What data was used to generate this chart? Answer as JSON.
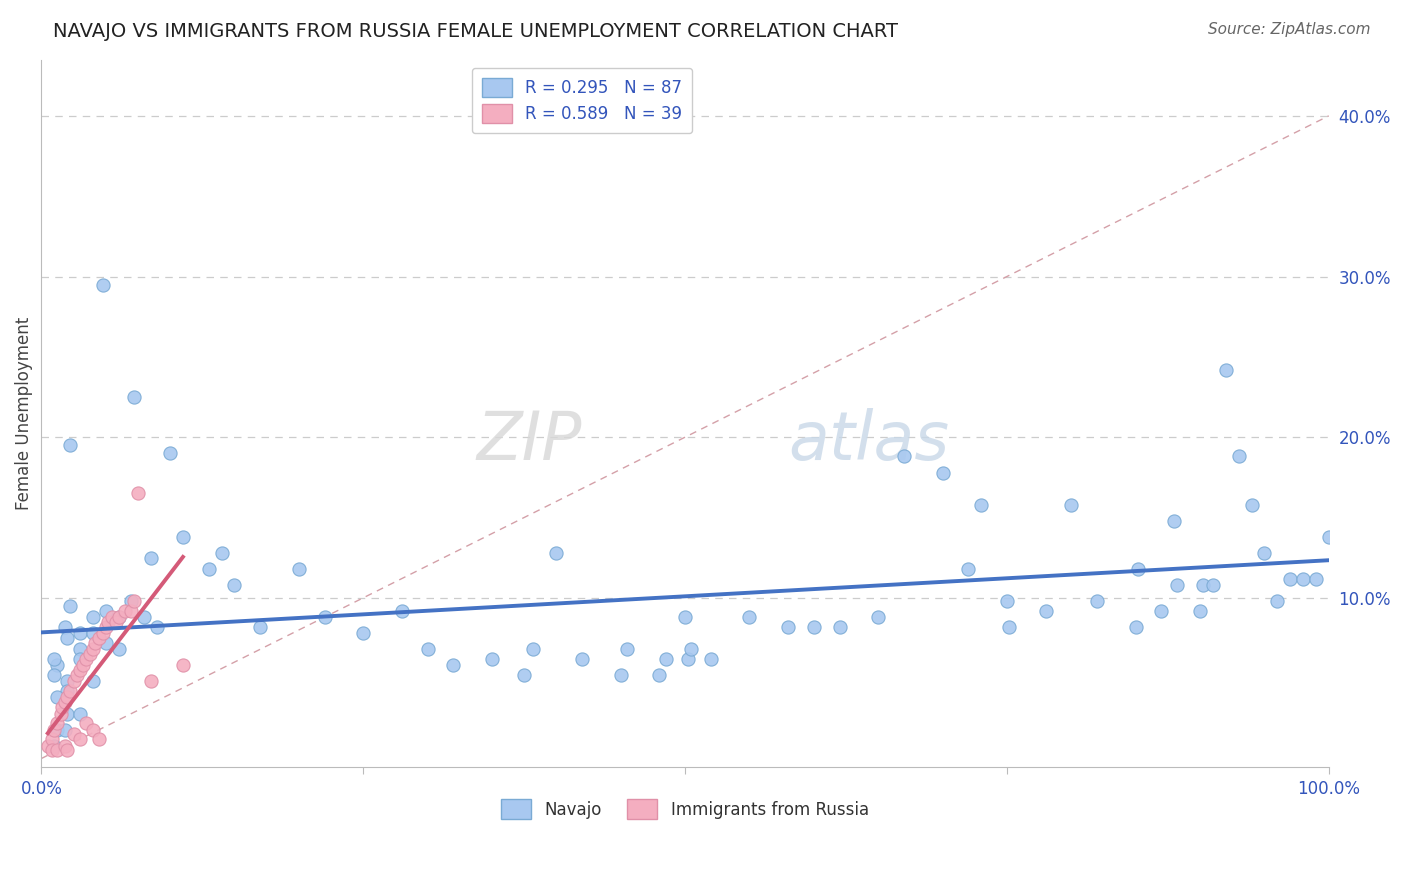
{
  "title": "NAVAJO VS IMMIGRANTS FROM RUSSIA FEMALE UNEMPLOYMENT CORRELATION CHART",
  "source": "Source: ZipAtlas.com",
  "ylabel": "Female Unemployment",
  "xlim": [
    0.0,
    1.0
  ],
  "ylim": [
    -0.005,
    0.435
  ],
  "navajo_R": 0.295,
  "navajo_N": 87,
  "russia_R": 0.589,
  "russia_N": 39,
  "navajo_color": "#a8c8f0",
  "russia_color": "#f4aec0",
  "navajo_edge_color": "#7aaad4",
  "russia_edge_color": "#e090a8",
  "navajo_line_color": "#4472c4",
  "russia_line_color": "#d45a78",
  "diagonal_color": "#d4a0a8",
  "text_color": "#3355bb",
  "N_color": "#cc2244",
  "navajo_points": [
    [
      0.022,
      0.195
    ],
    [
      0.048,
      0.295
    ],
    [
      0.072,
      0.225
    ],
    [
      0.1,
      0.19
    ],
    [
      0.085,
      0.125
    ],
    [
      0.022,
      0.095
    ],
    [
      0.018,
      0.082
    ],
    [
      0.02,
      0.075
    ],
    [
      0.03,
      0.078
    ],
    [
      0.04,
      0.088
    ],
    [
      0.012,
      0.058
    ],
    [
      0.01,
      0.062
    ],
    [
      0.01,
      0.052
    ],
    [
      0.02,
      0.048
    ],
    [
      0.03,
      0.068
    ],
    [
      0.04,
      0.078
    ],
    [
      0.05,
      0.092
    ],
    [
      0.06,
      0.088
    ],
    [
      0.07,
      0.098
    ],
    [
      0.08,
      0.088
    ],
    [
      0.09,
      0.082
    ],
    [
      0.05,
      0.072
    ],
    [
      0.03,
      0.062
    ],
    [
      0.02,
      0.042
    ],
    [
      0.012,
      0.038
    ],
    [
      0.02,
      0.028
    ],
    [
      0.012,
      0.018
    ],
    [
      0.018,
      0.018
    ],
    [
      0.03,
      0.028
    ],
    [
      0.01,
      0.008
    ],
    [
      0.04,
      0.048
    ],
    [
      0.06,
      0.068
    ],
    [
      0.11,
      0.138
    ],
    [
      0.13,
      0.118
    ],
    [
      0.14,
      0.128
    ],
    [
      0.15,
      0.108
    ],
    [
      0.17,
      0.082
    ],
    [
      0.2,
      0.118
    ],
    [
      0.22,
      0.088
    ],
    [
      0.25,
      0.078
    ],
    [
      0.28,
      0.092
    ],
    [
      0.3,
      0.068
    ],
    [
      0.32,
      0.058
    ],
    [
      0.35,
      0.062
    ],
    [
      0.375,
      0.052
    ],
    [
      0.382,
      0.068
    ],
    [
      0.4,
      0.128
    ],
    [
      0.42,
      0.062
    ],
    [
      0.45,
      0.052
    ],
    [
      0.455,
      0.068
    ],
    [
      0.48,
      0.052
    ],
    [
      0.5,
      0.088
    ],
    [
      0.502,
      0.062
    ],
    [
      0.52,
      0.062
    ],
    [
      0.55,
      0.088
    ],
    [
      0.58,
      0.082
    ],
    [
      0.6,
      0.082
    ],
    [
      0.62,
      0.082
    ],
    [
      0.65,
      0.088
    ],
    [
      0.67,
      0.188
    ],
    [
      0.7,
      0.178
    ],
    [
      0.72,
      0.118
    ],
    [
      0.73,
      0.158
    ],
    [
      0.75,
      0.098
    ],
    [
      0.752,
      0.082
    ],
    [
      0.78,
      0.092
    ],
    [
      0.8,
      0.158
    ],
    [
      0.82,
      0.098
    ],
    [
      0.85,
      0.082
    ],
    [
      0.852,
      0.118
    ],
    [
      0.87,
      0.092
    ],
    [
      0.88,
      0.148
    ],
    [
      0.882,
      0.108
    ],
    [
      0.9,
      0.092
    ],
    [
      0.902,
      0.108
    ],
    [
      0.91,
      0.108
    ],
    [
      0.92,
      0.242
    ],
    [
      0.93,
      0.188
    ],
    [
      0.94,
      0.158
    ],
    [
      0.95,
      0.128
    ],
    [
      0.96,
      0.098
    ],
    [
      0.97,
      0.112
    ],
    [
      0.98,
      0.112
    ],
    [
      0.99,
      0.112
    ],
    [
      1.0,
      0.138
    ],
    [
      0.485,
      0.062
    ],
    [
      0.505,
      0.068
    ]
  ],
  "russia_points": [
    [
      0.005,
      0.008
    ],
    [
      0.008,
      0.012
    ],
    [
      0.01,
      0.018
    ],
    [
      0.012,
      0.022
    ],
    [
      0.015,
      0.028
    ],
    [
      0.016,
      0.032
    ],
    [
      0.018,
      0.035
    ],
    [
      0.02,
      0.038
    ],
    [
      0.022,
      0.042
    ],
    [
      0.025,
      0.048
    ],
    [
      0.028,
      0.052
    ],
    [
      0.03,
      0.055
    ],
    [
      0.032,
      0.058
    ],
    [
      0.035,
      0.062
    ],
    [
      0.038,
      0.065
    ],
    [
      0.04,
      0.068
    ],
    [
      0.042,
      0.072
    ],
    [
      0.045,
      0.075
    ],
    [
      0.048,
      0.078
    ],
    [
      0.05,
      0.082
    ],
    [
      0.052,
      0.085
    ],
    [
      0.055,
      0.088
    ],
    [
      0.058,
      0.085
    ],
    [
      0.06,
      0.088
    ],
    [
      0.065,
      0.092
    ],
    [
      0.07,
      0.092
    ],
    [
      0.072,
      0.098
    ],
    [
      0.075,
      0.165
    ],
    [
      0.008,
      0.005
    ],
    [
      0.012,
      0.005
    ],
    [
      0.018,
      0.008
    ],
    [
      0.02,
      0.005
    ],
    [
      0.025,
      0.015
    ],
    [
      0.03,
      0.012
    ],
    [
      0.035,
      0.022
    ],
    [
      0.04,
      0.018
    ],
    [
      0.045,
      0.012
    ],
    [
      0.085,
      0.048
    ],
    [
      0.11,
      0.058
    ]
  ]
}
